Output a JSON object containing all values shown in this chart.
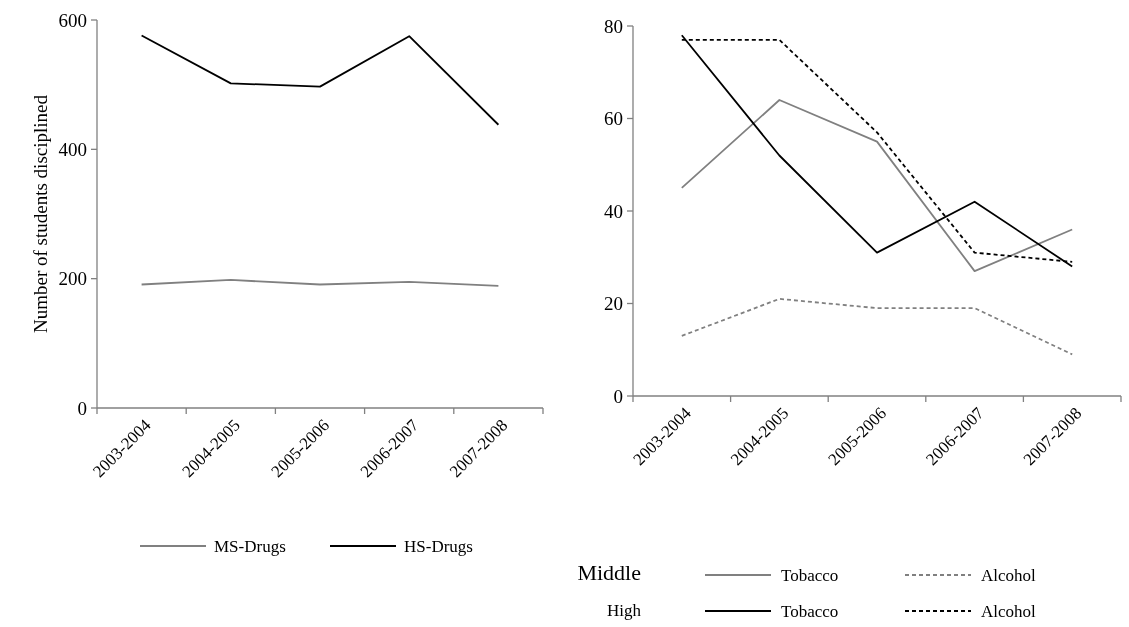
{
  "chart_data": [
    {
      "type": "line",
      "ylabel": "Number of students disciplined",
      "categories": [
        "2003-2004",
        "2004-2005",
        "2005-2006",
        "2006-2007",
        "2007-2008"
      ],
      "ylim": [
        0,
        600
      ],
      "yticks": [
        0,
        200,
        400,
        600
      ],
      "grid": false,
      "legend": "bottom",
      "series": [
        {
          "name": "MS-Drugs",
          "color": "#808080",
          "line_style": "solid",
          "values": [
            191,
            198,
            191,
            195,
            189
          ]
        },
        {
          "name": "HS-Drugs",
          "color": "#000000",
          "line_style": "solid",
          "values": [
            576,
            502,
            497,
            575,
            438
          ]
        }
      ]
    },
    {
      "type": "line",
      "categories": [
        "2003-2004",
        "2004-2005",
        "2005-2006",
        "2006-2007",
        "2007-2008"
      ],
      "ylim": [
        0,
        80
      ],
      "yticks": [
        0,
        20,
        40,
        60,
        80
      ],
      "grid": false,
      "legend": "bottom",
      "annotations": [
        "Middle",
        "High"
      ],
      "series": [
        {
          "name": "Tobacco",
          "color": "#808080",
          "line_style": "solid",
          "values": [
            45,
            64,
            55,
            27,
            36
          ]
        },
        {
          "name": "Alcohol",
          "color": "#808080",
          "line_style": "dashed",
          "values": [
            13,
            21,
            19,
            19,
            9
          ]
        },
        {
          "name": "Tobacco",
          "color": "#000000",
          "line_style": "solid",
          "values": [
            78,
            52,
            31,
            42,
            28
          ]
        },
        {
          "name": "Alcohol",
          "color": "#000000",
          "line_style": "dashed",
          "values": [
            77,
            77,
            57,
            31,
            29
          ]
        }
      ]
    }
  ]
}
